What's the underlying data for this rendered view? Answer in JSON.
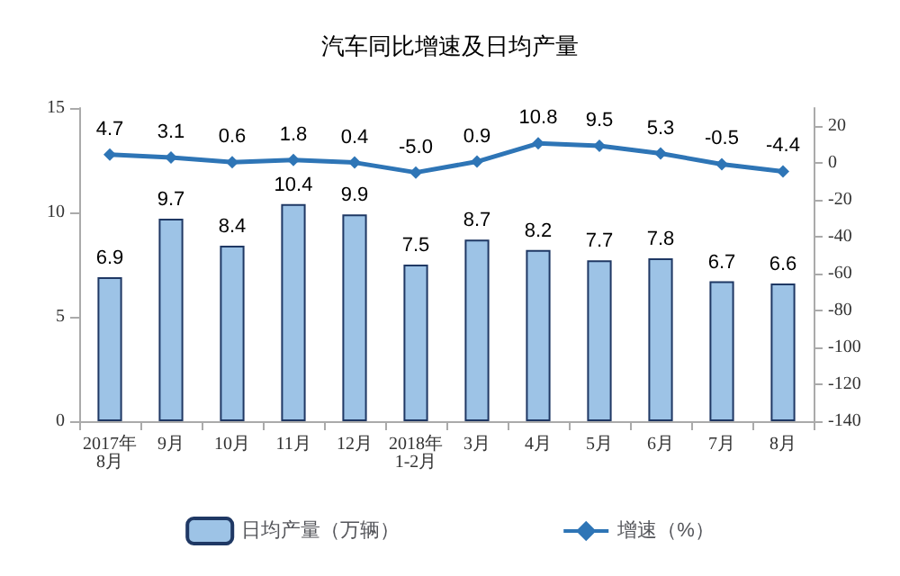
{
  "chart_data": {
    "type": "bar",
    "title": "汽车同比增速及日均产量",
    "categories": [
      "2017年\n8月",
      "9月",
      "10月",
      "11月",
      "12月",
      "2018年\n1-2月",
      "3月",
      "4月",
      "5月",
      "6月",
      "7月",
      "8月"
    ],
    "series": [
      {
        "name": "日均产量（万辆）",
        "color": "#9dc3e6",
        "values": [
          6.9,
          9.7,
          8.4,
          10.4,
          9.9,
          7.5,
          8.7,
          8.2,
          7.7,
          7.8,
          6.7,
          6.6
        ],
        "value_labels": [
          "6.9",
          "9.7",
          "8.4",
          "10.4",
          "9.9",
          "7.5",
          "8.7",
          "8.2",
          "7.7",
          "7.8",
          "6.7",
          "6.6"
        ]
      },
      {
        "name": "增速（%）",
        "type": "line",
        "axis": "y2",
        "color": "#2e75b6",
        "values": [
          4.7,
          3.1,
          0.6,
          1.8,
          0.4,
          -5.0,
          0.9,
          10.8,
          9.5,
          5.3,
          -0.5,
          -4.4
        ],
        "value_labels": [
          "4.7",
          "3.1",
          "0.6",
          "1.8",
          "0.4",
          "-5.0",
          "0.9",
          "10.8",
          "9.5",
          "5.3",
          "-0.5",
          "-4.4"
        ]
      }
    ],
    "ylim": [
      0,
      15
    ],
    "yticks": [
      0,
      5,
      10,
      15
    ],
    "y2lim": [
      -140,
      30
    ],
    "y2ticks": [
      -140,
      -120,
      -100,
      -80,
      -60,
      -40,
      -20,
      0,
      20
    ],
    "legend": "bottom",
    "grid": false,
    "marker": "diamond",
    "line_style": "solid"
  }
}
